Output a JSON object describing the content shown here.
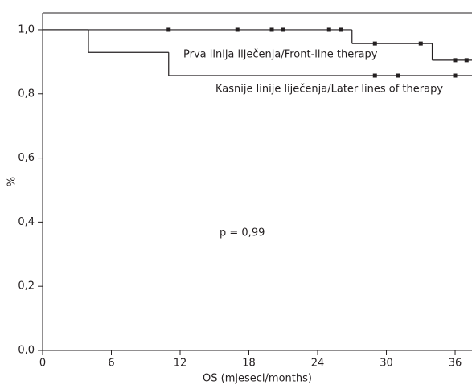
{
  "chart_data": {
    "type": "step",
    "x_label": "OS (mjeseci/months)",
    "y_label": "%",
    "annotation": "p = 0,99",
    "xlim": [
      0,
      37.5
    ],
    "xticks": [
      0,
      6,
      12,
      18,
      24,
      30,
      36
    ],
    "ylim": [
      0,
      1.05
    ],
    "yticks": [
      {
        "value": 0,
        "label": "0,0"
      },
      {
        "value": 0.2,
        "label": "0,2"
      },
      {
        "value": 0.4,
        "label": "0,4"
      },
      {
        "value": 0.6,
        "label": "0,6"
      },
      {
        "value": 0.8,
        "label": "0,8"
      },
      {
        "value": 1.0,
        "label": "1,0"
      }
    ],
    "series": [
      {
        "name": "Prva linija liječenja/Front-line therapy",
        "color": "#231f20",
        "x": [
          0,
          27,
          34
        ],
        "values": [
          1.0,
          0.957,
          0.905
        ],
        "censored": {
          "x": [
            11,
            17,
            20,
            21,
            25,
            26,
            29,
            33,
            36,
            37
          ],
          "values": [
            1.0,
            1.0,
            1.0,
            1.0,
            1.0,
            1.0,
            0.957,
            0.957,
            0.905,
            0.905
          ]
        }
      },
      {
        "name": "Kasnije linije liječenja/Later lines of therapy",
        "color": "#231f20",
        "x": [
          0,
          4,
          11
        ],
        "values": [
          1.0,
          0.929,
          0.857
        ],
        "censored": {
          "x": [
            29,
            31,
            36
          ],
          "values": [
            0.857,
            0.857,
            0.857
          ]
        }
      }
    ]
  }
}
